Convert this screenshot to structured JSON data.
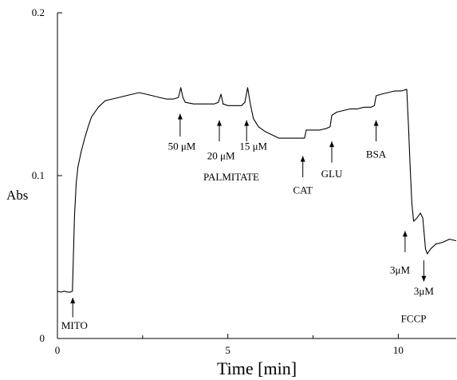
{
  "chart_data": {
    "type": "line",
    "title": "",
    "xlabel": "Time [min]",
    "ylabel": "Abs",
    "xlim": [
      0,
      11.7
    ],
    "ylim": [
      0,
      0.2
    ],
    "grid": false,
    "x_ticks": [
      {
        "value": 0,
        "label": "0"
      },
      {
        "value": 5,
        "label": "5"
      },
      {
        "value": 10,
        "label": "10"
      }
    ],
    "x_minor_ticks": [
      2.5,
      7.5
    ],
    "y_ticks": [
      {
        "value": 0,
        "label": "0"
      },
      {
        "value": 0.1,
        "label": "0.1"
      },
      {
        "value": 0.2,
        "label": "0.2"
      }
    ],
    "series": [
      {
        "points": [
          [
            0.0,
            0.029
          ],
          [
            0.1,
            0.0285
          ],
          [
            0.2,
            0.029
          ],
          [
            0.3,
            0.0285
          ],
          [
            0.38,
            0.0285
          ],
          [
            0.44,
            0.029
          ],
          [
            0.5,
            0.075
          ],
          [
            0.55,
            0.095
          ],
          [
            0.6,
            0.105
          ],
          [
            0.7,
            0.115
          ],
          [
            0.8,
            0.123
          ],
          [
            0.9,
            0.13
          ],
          [
            1.0,
            0.136
          ],
          [
            1.2,
            0.142
          ],
          [
            1.4,
            0.146
          ],
          [
            1.6,
            0.147
          ],
          [
            1.8,
            0.148
          ],
          [
            2.0,
            0.149
          ],
          [
            2.2,
            0.15
          ],
          [
            2.4,
            0.151
          ],
          [
            2.6,
            0.15
          ],
          [
            2.8,
            0.149
          ],
          [
            3.0,
            0.148
          ],
          [
            3.2,
            0.147
          ],
          [
            3.4,
            0.147
          ],
          [
            3.55,
            0.148
          ],
          [
            3.62,
            0.154
          ],
          [
            3.68,
            0.148
          ],
          [
            3.75,
            0.145
          ],
          [
            4.0,
            0.144
          ],
          [
            4.3,
            0.144
          ],
          [
            4.6,
            0.144
          ],
          [
            4.72,
            0.145
          ],
          [
            4.8,
            0.15
          ],
          [
            4.86,
            0.144
          ],
          [
            5.0,
            0.143
          ],
          [
            5.2,
            0.143
          ],
          [
            5.4,
            0.143
          ],
          [
            5.5,
            0.145
          ],
          [
            5.58,
            0.154
          ],
          [
            5.66,
            0.144
          ],
          [
            5.75,
            0.135
          ],
          [
            5.9,
            0.13
          ],
          [
            6.1,
            0.127
          ],
          [
            6.3,
            0.125
          ],
          [
            6.5,
            0.123
          ],
          [
            6.7,
            0.123
          ],
          [
            6.9,
            0.123
          ],
          [
            7.1,
            0.123
          ],
          [
            7.25,
            0.123
          ],
          [
            7.3,
            0.128
          ],
          [
            7.5,
            0.128
          ],
          [
            7.7,
            0.128
          ],
          [
            7.9,
            0.129
          ],
          [
            8.0,
            0.13
          ],
          [
            8.05,
            0.137
          ],
          [
            8.2,
            0.139
          ],
          [
            8.4,
            0.14
          ],
          [
            8.6,
            0.141
          ],
          [
            8.8,
            0.141
          ],
          [
            9.0,
            0.142
          ],
          [
            9.2,
            0.142
          ],
          [
            9.3,
            0.143
          ],
          [
            9.35,
            0.149
          ],
          [
            9.5,
            0.15
          ],
          [
            9.7,
            0.151
          ],
          [
            9.9,
            0.152
          ],
          [
            10.1,
            0.152
          ],
          [
            10.25,
            0.153
          ],
          [
            10.3,
            0.13
          ],
          [
            10.35,
            0.105
          ],
          [
            10.4,
            0.083
          ],
          [
            10.45,
            0.072
          ],
          [
            10.55,
            0.074
          ],
          [
            10.65,
            0.077
          ],
          [
            10.72,
            0.074
          ],
          [
            10.8,
            0.055
          ],
          [
            10.85,
            0.052
          ],
          [
            10.95,
            0.055
          ],
          [
            11.1,
            0.058
          ],
          [
            11.3,
            0.059
          ],
          [
            11.5,
            0.061
          ],
          [
            11.7,
            0.06
          ]
        ]
      }
    ],
    "annotations": [
      {
        "text": "MITO",
        "arrow_x": 0.45,
        "arrow_y": [
          0.025,
          0.013
        ],
        "text_x": 0.5,
        "text_y": 0.006,
        "anchor": "middle"
      },
      {
        "text": "50 μM",
        "arrow_x": 3.6,
        "arrow_y": [
          0.138,
          0.124
        ],
        "text_x": 3.65,
        "text_y": 0.116,
        "anchor": "middle"
      },
      {
        "text": "20 μM",
        "arrow_x": 4.75,
        "arrow_y": [
          0.134,
          0.121
        ],
        "text_x": 4.8,
        "text_y": 0.11,
        "anchor": "middle"
      },
      {
        "text": "15 μM",
        "arrow_x": 5.55,
        "arrow_y": [
          0.134,
          0.121
        ],
        "text_x": 5.75,
        "text_y": 0.116,
        "anchor": "middle"
      },
      {
        "text": "PALMITATE",
        "arrow_x": null,
        "text_x": 5.1,
        "text_y": 0.097,
        "anchor": "middle"
      },
      {
        "text": "CAT",
        "arrow_x": 7.2,
        "arrow_y": [
          0.112,
          0.099
        ],
        "text_x": 7.2,
        "text_y": 0.089,
        "anchor": "middle"
      },
      {
        "text": "GLU",
        "arrow_x": 8.05,
        "arrow_y": [
          0.121,
          0.108
        ],
        "text_x": 8.05,
        "text_y": 0.099,
        "anchor": "middle"
      },
      {
        "text": "BSA",
        "arrow_x": 9.35,
        "arrow_y": [
          0.134,
          0.121
        ],
        "text_x": 9.35,
        "text_y": 0.111,
        "anchor": "middle"
      },
      {
        "text": "3μM",
        "arrow_x": 10.2,
        "arrow_y": [
          0.066,
          0.053
        ],
        "text_x": 10.05,
        "text_y": 0.04,
        "anchor": "middle"
      },
      {
        "text": "3μM",
        "arrow_x": 10.75,
        "arrow_y": [
          0.035,
          0.048
        ],
        "text_x": 10.75,
        "text_y": 0.027,
        "anchor": "middle"
      },
      {
        "text": "FCCP",
        "arrow_x": null,
        "text_x": 10.45,
        "text_y": 0.01,
        "anchor": "middle"
      }
    ]
  }
}
